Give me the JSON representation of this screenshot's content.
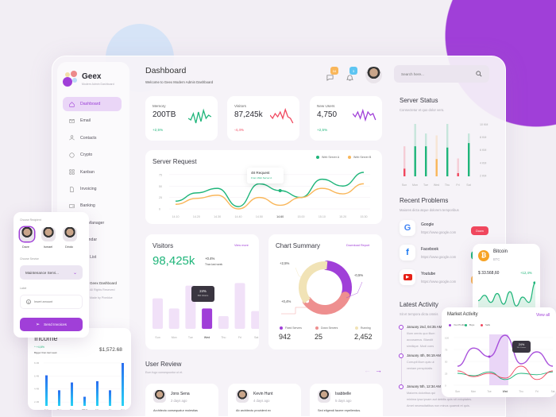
{
  "colors": {
    "accent": "#a03fd8",
    "green": "#1fb57a",
    "orange": "#f9b65a",
    "red": "#f0475e",
    "blue": "#2a8cf0"
  },
  "brand": {
    "name": "Geex",
    "tagline": "Modern Admin Dashboard"
  },
  "sidebar": {
    "items": [
      {
        "label": "Dashboard",
        "icon": "home-icon",
        "active": true
      },
      {
        "label": "Email",
        "icon": "mail-icon"
      },
      {
        "label": "Contacts",
        "icon": "user-icon"
      },
      {
        "label": "Crypto",
        "icon": "coin-icon"
      },
      {
        "label": "Kanban",
        "icon": "grid-icon"
      },
      {
        "label": "Invoicing",
        "icon": "file-icon"
      },
      {
        "label": "Banking",
        "icon": "wallet-icon"
      },
      {
        "label": "File Manager",
        "icon": "folder-icon"
      },
      {
        "label": "Calendar",
        "icon": "calendar-icon"
      },
      {
        "label": "Task List",
        "icon": "list-icon"
      }
    ],
    "footer": {
      "title": "Geex Dashboard",
      "line1": "All Rights Reserved",
      "line2": "Made by Pixeldue"
    }
  },
  "header": {
    "title": "Dashboard",
    "subtitle": "Welcome to Geex Modern Admin Dashboard",
    "messages_count": "04",
    "notifications_count": "3",
    "search_placeholder": "Search here..."
  },
  "stats": [
    {
      "label": "Memory",
      "value": "200TB",
      "change": "+2,5%",
      "trend": "up",
      "color": "#1fb57a"
    },
    {
      "label": "Visitors",
      "value": "87,245k",
      "change": "-4,4%",
      "trend": "down",
      "color": "#f0475e"
    },
    {
      "label": "New Users",
      "value": "4,750",
      "change": "+2,5%",
      "trend": "up",
      "color": "#a03fd8"
    }
  ],
  "server_request": {
    "title": "Server Request",
    "tooltip": {
      "title": "48 Request",
      "sub": "From Web Server A"
    },
    "chart_data": {
      "type": "line",
      "categories": [
        "14.10",
        "14.20",
        "14.30",
        "14.40",
        "14.50",
        "14.60",
        "15.00",
        "15.10",
        "15.20",
        "15.30"
      ],
      "highlight": "14.60",
      "yticks": [
        0,
        25,
        50,
        75
      ],
      "ylim": [
        0,
        80
      ],
      "series": [
        {
          "name": "Web Server A",
          "color": "#1fb57a",
          "values": [
            17,
            35,
            45,
            5,
            55,
            40,
            25,
            65,
            50,
            80
          ]
        },
        {
          "name": "Web Server B",
          "color": "#f9b65a",
          "values": [
            10,
            23,
            30,
            0,
            25,
            8,
            25,
            45,
            33,
            55
          ]
        }
      ]
    }
  },
  "visitors": {
    "title": "Visitors",
    "link": "View more",
    "value": "98,425k",
    "change": "+0.4%",
    "change_sub": "Than last week",
    "tooltip": {
      "title": "24%",
      "sub": "560 Visitors"
    },
    "chart_data": {
      "type": "bar",
      "categories": [
        "Sun",
        "Mon",
        "Tue",
        "Wed",
        "Thu",
        "Fri",
        "Sat"
      ],
      "values": [
        60,
        40,
        85,
        40,
        25,
        90,
        35
      ],
      "highlight": "Wed"
    }
  },
  "chart_summary": {
    "title": "Chart Summary",
    "link": "Download Report",
    "chart_data": {
      "type": "pie",
      "labels": [
        "Fixed Servers",
        "Down Servers",
        "Running"
      ],
      "shares": [
        30,
        33,
        37
      ],
      "colors": [
        "#a03fd8",
        "#ee8f8f",
        "#f1e3b6"
      ],
      "values": [
        "942",
        "25",
        "2,452"
      ],
      "annotations": [
        "-0,5%",
        "+0,4%",
        "+2,5%"
      ]
    }
  },
  "user_review": {
    "title": "User Review",
    "subtitle": "Eum fugo consequuntur ut et.",
    "reviews": [
      {
        "name": "Jons Sena",
        "time": "2 days ago",
        "text": "Architecto consequatur molestias"
      },
      {
        "name": "Kevin Hunt",
        "time": "4 days ago",
        "text": "Ab architecto provident ex"
      },
      {
        "name": "Isabbelle",
        "time": "5 days ago",
        "text": "Sed eligendi facere repellendus."
      }
    ]
  },
  "server_status": {
    "title": "Server Status",
    "subtitle": "Consectetur et quo dolor vero.",
    "chart_data": {
      "type": "bar",
      "categories": [
        "Sun",
        "Mon",
        "Tue",
        "Wed",
        "Thu",
        "Fri",
        "Sat"
      ],
      "yticks": [
        "10 KM",
        "8 KM",
        "6 KM",
        "4 KM",
        "2 KM"
      ],
      "values": [
        3,
        6.5,
        6.5,
        4.5,
        6.3,
        2.3,
        7
      ],
      "max_values": [
        6.5,
        10,
        8.5,
        8.2,
        10,
        4.6,
        8.5
      ],
      "colors": [
        "#f0475e",
        "#1fb57a",
        "#1fb57a",
        "#f9b65a",
        "#1fb57a",
        "#f0475e",
        "#1fb57a"
      ]
    }
  },
  "recent_problems": {
    "title": "Recent Problems",
    "subtitle": "Maiores dicta atque dolorem temporibus",
    "items": [
      {
        "name": "Google",
        "url": "https://www.google.com",
        "status": "Down",
        "status_color": "#f0475e"
      },
      {
        "name": "Facebook",
        "url": "https://www.google.com",
        "status": "Up",
        "status_color": "#1fb57a"
      },
      {
        "name": "Youtube",
        "url": "https://www.google.com",
        "status": "Slow",
        "status_color": "#f9b65a"
      }
    ]
  },
  "latest_activity": {
    "title": "Latest Activity",
    "subtitle": "Sit et tempora dicta omnis",
    "items": [
      {
        "date": "January 2nd, 04:35 AM",
        "lines": [
          "Illum omnis quo illum",
          "accusamus. Blandit",
          "similique. Modi cons"
        ]
      },
      {
        "date": "January 4th, 06:19 AM",
        "lines": [
          "Corrupti illum quis ut",
          "veniam perspiciatis"
        ]
      },
      {
        "date": "January 5th, 12:34 AM",
        "lines": [
          "Maiores doloribus qui",
          "minima ipsa ipsam aut debitis quis sit voluptates.",
          "Amet necessitatibus non minus quaerat et quis."
        ]
      }
    ]
  },
  "bitcoin": {
    "name": "Bitcoin",
    "symbol": "BTC",
    "price": "$ 33.568,60",
    "change": "+12,4%",
    "chart_data": {
      "type": "area",
      "values": [
        30,
        45,
        25,
        50,
        20,
        55,
        15,
        40,
        25,
        80
      ]
    }
  },
  "market": {
    "title": "Market Activity",
    "link": "View all",
    "tooltip": {
      "title": "24%",
      "sub": "560 Visitors"
    },
    "chart_data": {
      "type": "line",
      "categories": [
        "Sun",
        "Mon",
        "Tue",
        "Wed",
        "Thu",
        "Fri",
        "Sat"
      ],
      "highlight": "Wed",
      "yticks": [
        0,
        25,
        50,
        75,
        100
      ],
      "ylim": [
        0,
        110
      ],
      "series": [
        {
          "name": "Your Profits",
          "color": "#a03fd8",
          "values": [
            40,
            78,
            60,
            105,
            45,
            70,
            40
          ]
        },
        {
          "name": "Buys",
          "color": "#1fb57a",
          "values": [
            25,
            20,
            28,
            12,
            25,
            22,
            28
          ]
        },
        {
          "name": "Sells",
          "color": "#f0475e",
          "values": [
            30,
            18,
            25,
            15,
            40,
            12,
            30
          ]
        }
      ]
    }
  },
  "invoice": {
    "recipient_label": "Choose Recipient",
    "recipients": [
      "Dave",
      "Ismael",
      "Dindo"
    ],
    "service_label": "Choose Service",
    "service_value": "Maintenance Servi...",
    "label_label": "Label",
    "amount_placeholder": "Insert amount",
    "send_label": "Send Invoices"
  },
  "income": {
    "title": "Income",
    "change": "+4,6%",
    "change_sub": "Bigger than last week",
    "total": "$1,572.68",
    "chart_data": {
      "type": "bar",
      "categories": [
        "Sun",
        "Mon",
        "Tue",
        "Wed",
        "Thu",
        "Fri",
        "Sat"
      ],
      "yticks": [
        "8.4M",
        "6.4M",
        "4.4M",
        "2.4M"
      ],
      "values": [
        6.5,
        4.2,
        5.4,
        3.2,
        5.6,
        4.2,
        8.4
      ],
      "highlight": "Wed"
    }
  }
}
